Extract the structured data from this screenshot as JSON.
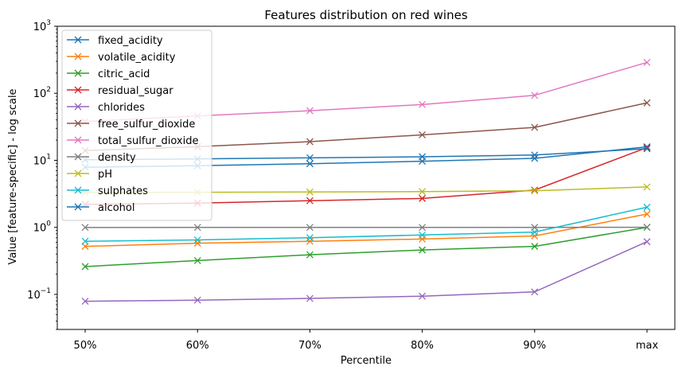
{
  "chart_data": {
    "type": "line",
    "title": "Features distribution on red wines",
    "xlabel": "Percentile",
    "ylabel": "Value [feature-specific] - log scale",
    "y_scale": "log",
    "ylim": [
      0.03,
      1000
    ],
    "y_ticks": [
      0.1,
      1,
      10,
      100,
      1000
    ],
    "y_tick_labels": [
      {
        "base": "10",
        "exp": "−1"
      },
      {
        "base": "10",
        "exp": "0"
      },
      {
        "base": "10",
        "exp": "1"
      },
      {
        "base": "10",
        "exp": "2"
      },
      {
        "base": "10",
        "exp": "3"
      }
    ],
    "categories": [
      "50%",
      "60%",
      "70%",
      "80%",
      "90%",
      "max"
    ],
    "legend_position": "upper-left",
    "marker": "x",
    "series": [
      {
        "name": "fixed_acidity",
        "color": "#1f77b4",
        "values": [
          7.9,
          8.3,
          8.9,
          9.7,
          10.7,
          15.9
        ]
      },
      {
        "name": "volatile_acidity",
        "color": "#ff7f0e",
        "values": [
          0.52,
          0.58,
          0.62,
          0.67,
          0.745,
          1.58
        ]
      },
      {
        "name": "citric_acid",
        "color": "#2ca02c",
        "values": [
          0.26,
          0.32,
          0.39,
          0.46,
          0.52,
          1.0
        ]
      },
      {
        "name": "residual_sugar",
        "color": "#d62728",
        "values": [
          2.2,
          2.3,
          2.5,
          2.7,
          3.6,
          15.5
        ]
      },
      {
        "name": "chlorides",
        "color": "#9467bd",
        "values": [
          0.079,
          0.082,
          0.087,
          0.094,
          0.109,
          0.611
        ]
      },
      {
        "name": "free_sulfur_dioxide",
        "color": "#8c564b",
        "values": [
          14,
          16,
          19,
          24,
          31,
          72
        ]
      },
      {
        "name": "total_sulfur_dioxide",
        "color": "#e377c2",
        "values": [
          38,
          46,
          55,
          68,
          93.2,
          289
        ]
      },
      {
        "name": "density",
        "color": "#7f7f7f",
        "values": [
          0.9968,
          0.9973,
          0.9978,
          0.9983,
          0.9991,
          1.0037
        ]
      },
      {
        "name": "pH",
        "color": "#bcbd22",
        "values": [
          3.31,
          3.34,
          3.37,
          3.42,
          3.51,
          4.01
        ]
      },
      {
        "name": "sulphates",
        "color": "#17becf",
        "values": [
          0.62,
          0.65,
          0.7,
          0.77,
          0.85,
          2.0
        ]
      },
      {
        "name": "alcohol",
        "color": "#1f77b4",
        "values": [
          10.2,
          10.5,
          10.9,
          11.3,
          12.0,
          14.9
        ]
      }
    ]
  }
}
